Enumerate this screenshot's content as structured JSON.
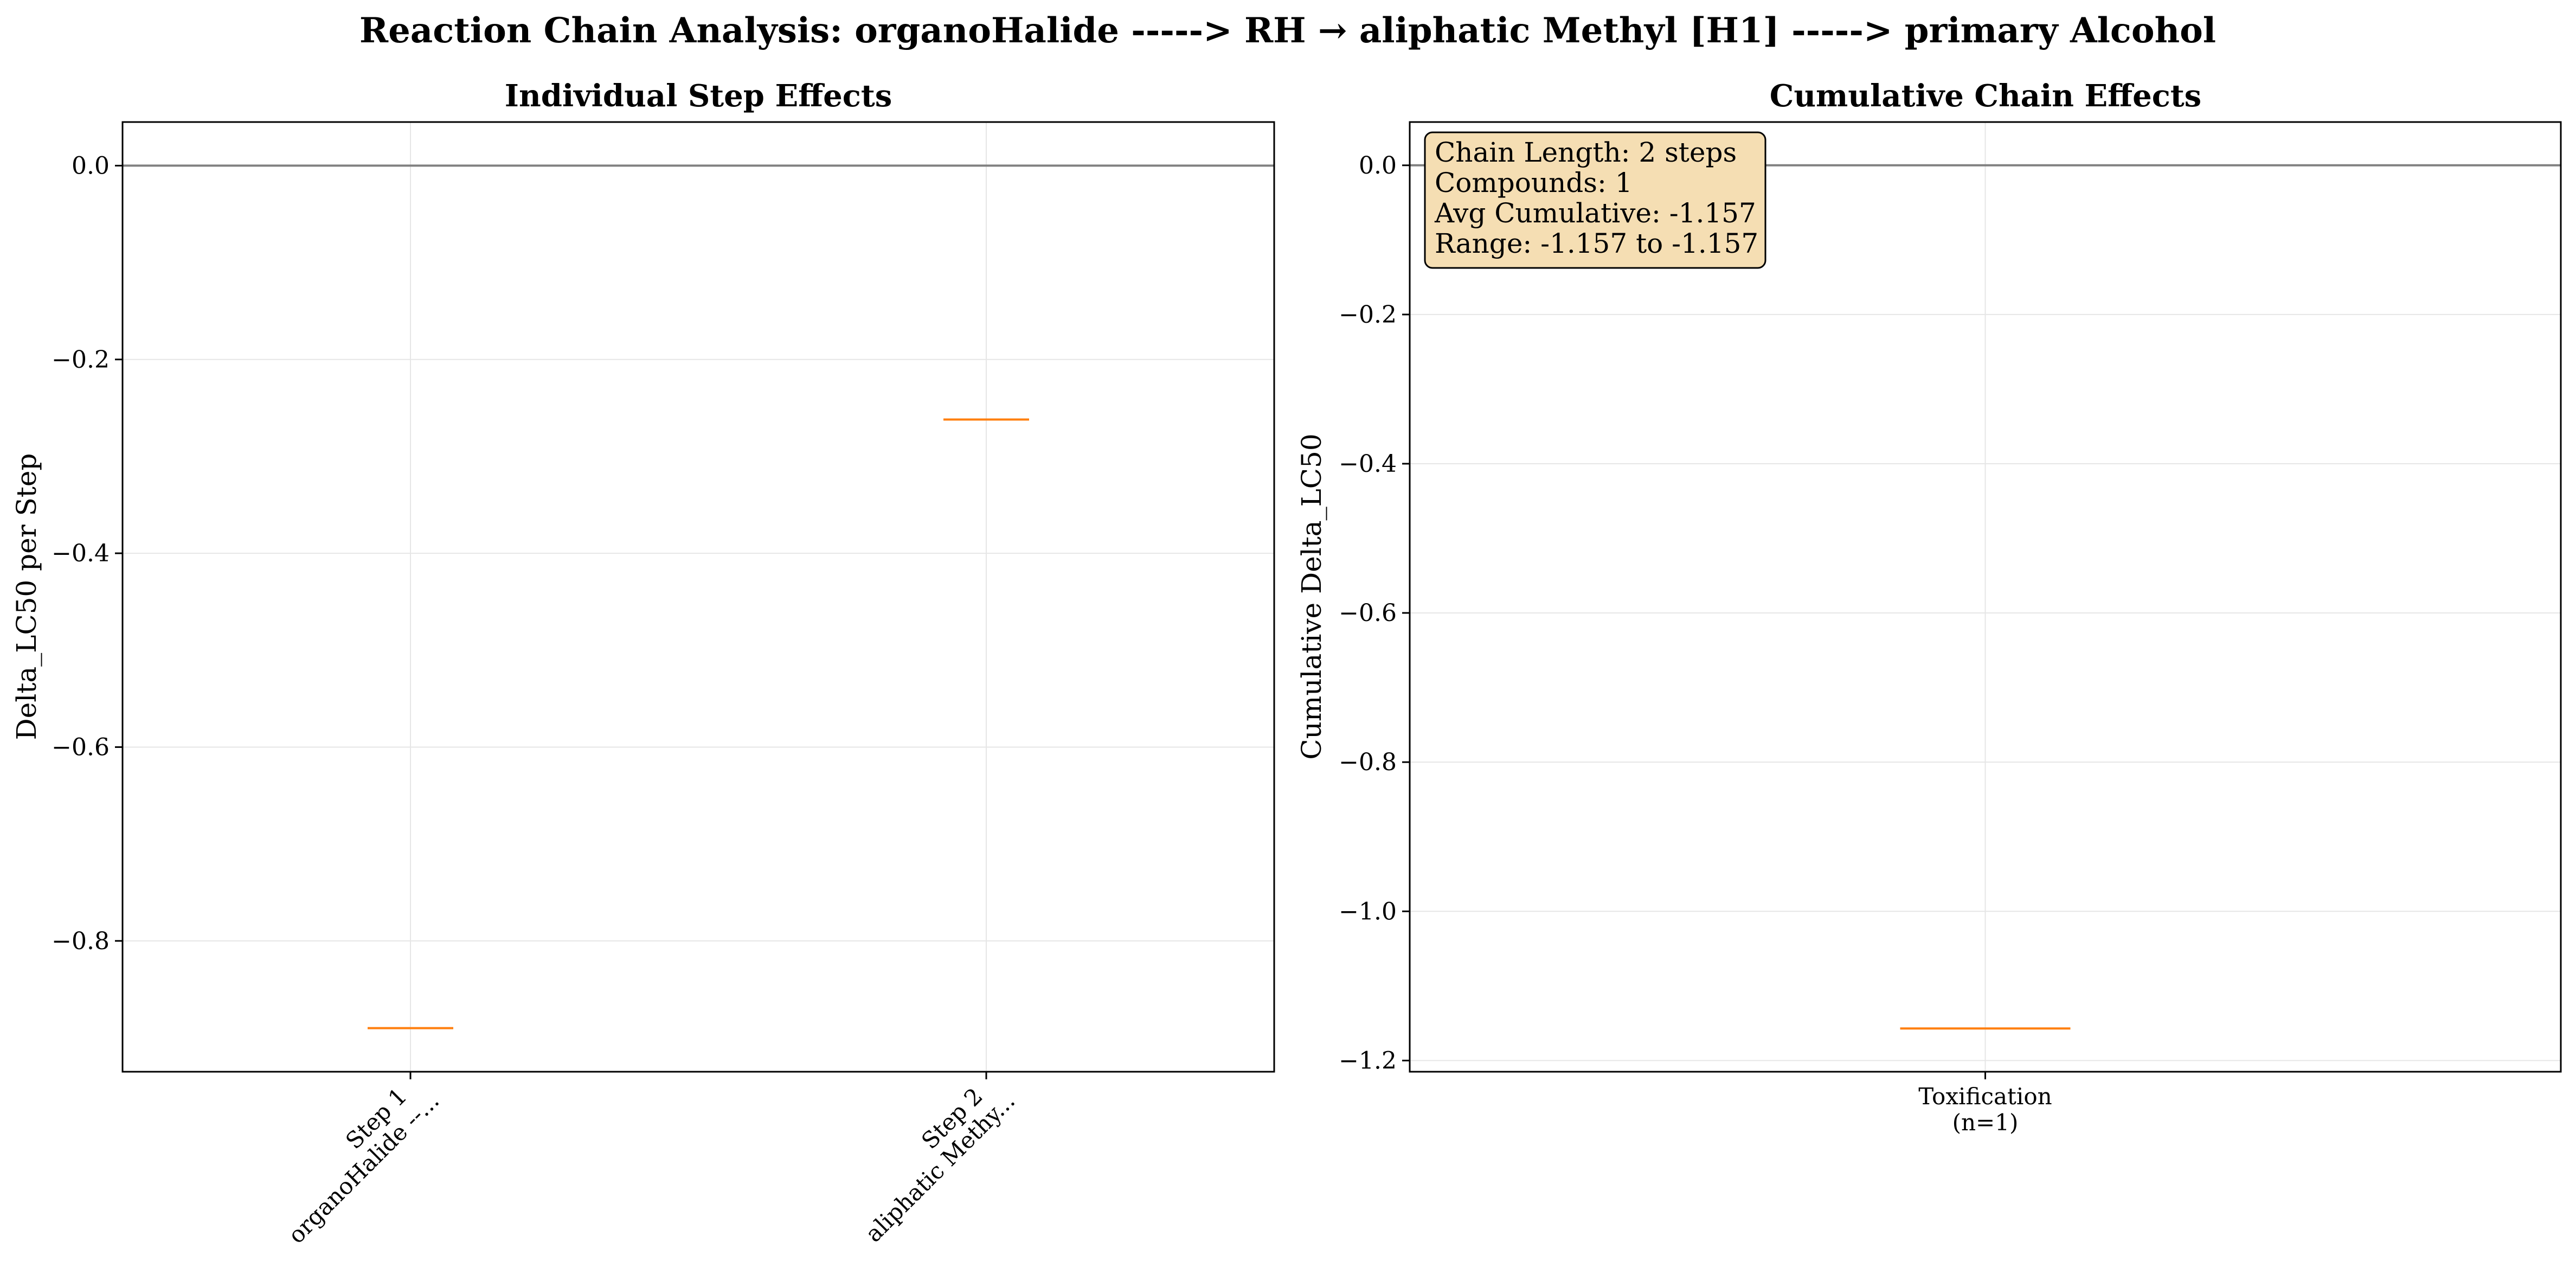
{
  "figure": {
    "title": "Reaction Chain Analysis: organoHalide -----> RH → aliphatic Methyl [H1] -----> primary Alcohol"
  },
  "colors": {
    "median": "#ff7f0e",
    "zero_line": "#808080",
    "grid": "#e6e6e6",
    "annotation_bg": "#f5deb3"
  },
  "chart_data": [
    {
      "type": "box",
      "title": "Individual Step Effects",
      "xlabel": "",
      "ylabel": "Delta_LC50 per Step",
      "ylim": [
        -0.935,
        0.045
      ],
      "yticks": [
        0.0,
        -0.2,
        -0.4,
        -0.6,
        -0.8
      ],
      "ytick_labels": [
        "0.0",
        "−0.2",
        "−0.4",
        "−0.6",
        "−0.8"
      ],
      "grid": true,
      "reference_line_y": 0.0,
      "categories": [
        {
          "line1": "Step 1",
          "line2": "organoHalide --...",
          "median": -0.89
        },
        {
          "line1": "Step 2",
          "line2": "aliphatic Methy...",
          "median": -0.262
        }
      ]
    },
    {
      "type": "box",
      "title": "Cumulative Chain Effects",
      "xlabel": "",
      "ylabel": "Cumulative Delta_LC50",
      "ylim": [
        -1.215,
        0.058
      ],
      "yticks": [
        0.0,
        -0.2,
        -0.4,
        -0.6,
        -0.8,
        -1.0,
        -1.2
      ],
      "ytick_labels": [
        "0.0",
        "−0.2",
        "−0.4",
        "−0.6",
        "−0.8",
        "−1.0",
        "−1.2"
      ],
      "grid": true,
      "reference_line_y": 0.0,
      "categories": [
        {
          "line1": "Toxification",
          "line2": "(n=1)",
          "median": -1.157
        }
      ],
      "annotation": {
        "placement": "top-left",
        "lines": [
          "Chain Length: 2 steps",
          "Compounds: 1",
          "Avg Cumulative: -1.157",
          "Range: -1.157 to -1.157"
        ]
      }
    }
  ]
}
